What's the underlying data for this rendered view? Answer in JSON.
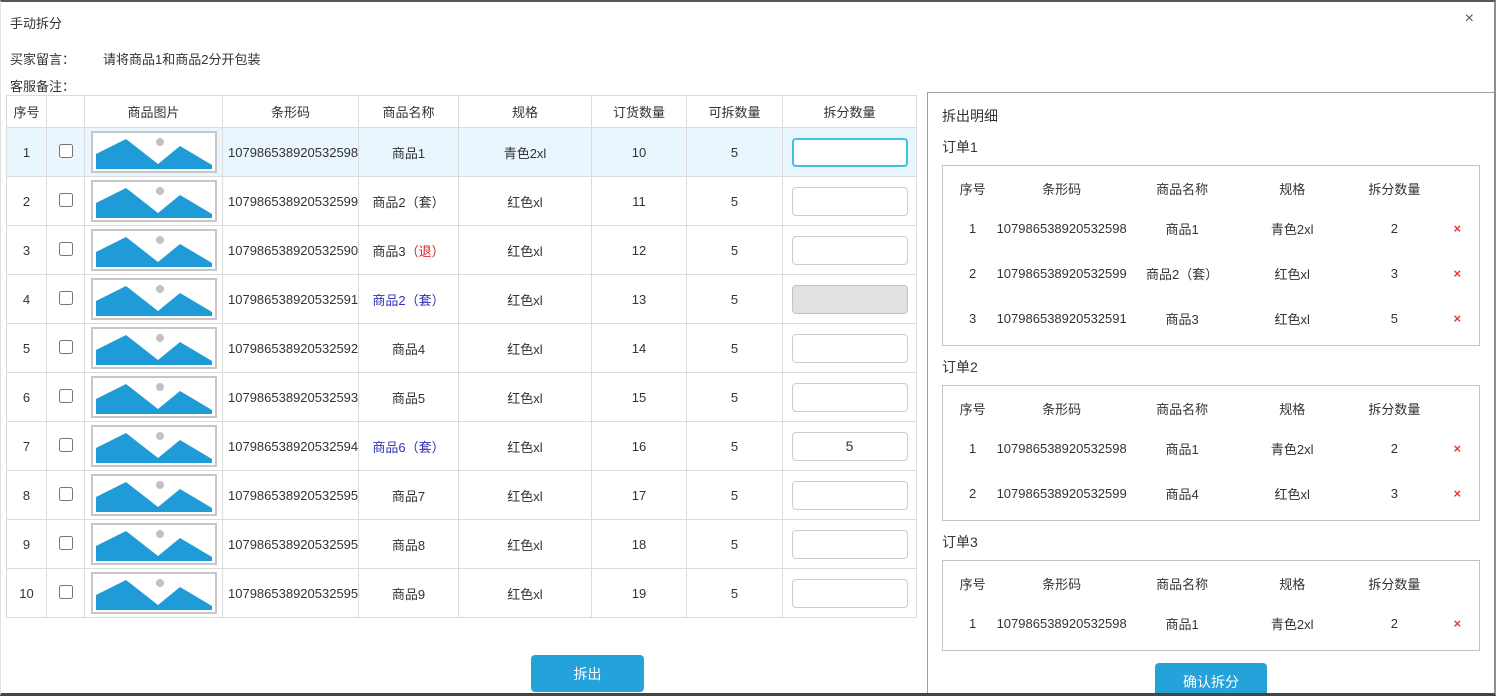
{
  "dialog": {
    "title": "手动拆分",
    "close_icon": "×"
  },
  "buyer_message": {
    "label": "买家留言：",
    "value": "请将商品1和商品2分开包装"
  },
  "service_note": {
    "label": "客服备注："
  },
  "colors": {
    "accent_blue": "#24a3da",
    "row_highlight": "#e9f6fd",
    "focus_border": "#3fc0e4",
    "link_navy": "#3232b4",
    "tag_red": "#e02020",
    "delete_red": "#e23b3b",
    "mountain_blue": "#1f9cd8"
  },
  "left_table": {
    "headers": [
      "序号",
      "",
      "商品图片",
      "条形码",
      "商品名称",
      "规格",
      "订货数量",
      "可拆数量",
      "拆分数量"
    ],
    "rows": [
      {
        "no": "1",
        "barcode": "107986538920532598",
        "name": [
          {
            "t": "商品1",
            "c": ""
          }
        ],
        "spec": "青色2xl",
        "order_qty": "10",
        "splittable_qty": "5",
        "input": {
          "value": "",
          "state": "focused"
        },
        "highlight": true
      },
      {
        "no": "2",
        "barcode": "107986538920532599",
        "name": [
          {
            "t": "商品2（套）",
            "c": ""
          }
        ],
        "spec": "红色xl",
        "order_qty": "11",
        "splittable_qty": "5",
        "input": {
          "value": "",
          "state": "normal"
        },
        "highlight": false
      },
      {
        "no": "3",
        "barcode": "107986538920532590",
        "name": [
          {
            "t": "商品3",
            "c": ""
          },
          {
            "t": "（退）",
            "c": "#e02020"
          }
        ],
        "spec": "红色xl",
        "order_qty": "12",
        "splittable_qty": "5",
        "input": {
          "value": "",
          "state": "normal"
        },
        "highlight": false
      },
      {
        "no": "4",
        "barcode": "107986538920532591",
        "name": [
          {
            "t": "商品2（套）",
            "c": "#3232b4"
          }
        ],
        "spec": "红色xl",
        "order_qty": "13",
        "splittable_qty": "5",
        "input": {
          "value": "",
          "state": "disabled"
        },
        "highlight": false
      },
      {
        "no": "5",
        "barcode": "107986538920532592",
        "name": [
          {
            "t": "商品4",
            "c": ""
          }
        ],
        "spec": "红色xl",
        "order_qty": "14",
        "splittable_qty": "5",
        "input": {
          "value": "",
          "state": "normal"
        },
        "highlight": false
      },
      {
        "no": "6",
        "barcode": "107986538920532593",
        "name": [
          {
            "t": "商品5",
            "c": ""
          }
        ],
        "spec": "红色xl",
        "order_qty": "15",
        "splittable_qty": "5",
        "input": {
          "value": "",
          "state": "normal"
        },
        "highlight": false
      },
      {
        "no": "7",
        "barcode": "107986538920532594",
        "name": [
          {
            "t": "商品6（套）",
            "c": "#3232b4"
          }
        ],
        "spec": "红色xl",
        "order_qty": "16",
        "splittable_qty": "5",
        "input": {
          "value": "5",
          "state": "normal"
        },
        "highlight": false
      },
      {
        "no": "8",
        "barcode": "107986538920532595",
        "name": [
          {
            "t": "商品7",
            "c": ""
          }
        ],
        "spec": "红色xl",
        "order_qty": "17",
        "splittable_qty": "5",
        "input": {
          "value": "",
          "state": "normal"
        },
        "highlight": false
      },
      {
        "no": "9",
        "barcode": "107986538920532595",
        "name": [
          {
            "t": "商品8",
            "c": ""
          }
        ],
        "spec": "红色xl",
        "order_qty": "18",
        "splittable_qty": "5",
        "input": {
          "value": "",
          "state": "normal"
        },
        "highlight": false
      },
      {
        "no": "10",
        "barcode": "107986538920532595",
        "name": [
          {
            "t": "商品9",
            "c": ""
          }
        ],
        "spec": "红色xl",
        "order_qty": "19",
        "splittable_qty": "5",
        "input": {
          "value": "",
          "state": "normal"
        },
        "highlight": false
      }
    ]
  },
  "actions": {
    "split_label": "拆出",
    "confirm_label": "确认拆分"
  },
  "detail_panel": {
    "title": "拆出明细",
    "table_headers": [
      "序号",
      "条形码",
      "商品名称",
      "规格",
      "拆分数量"
    ],
    "delete_icon": "×",
    "orders": [
      {
        "label": "订单1",
        "rows": [
          {
            "no": "1",
            "barcode": "107986538920532598",
            "name": "商品1",
            "spec": "青色2xl",
            "qty": "2"
          },
          {
            "no": "2",
            "barcode": "107986538920532599",
            "name": "商品2（套）",
            "spec": "红色xl",
            "qty": "3"
          },
          {
            "no": "3",
            "barcode": "107986538920532591",
            "name": "商品3",
            "spec": "红色xl",
            "qty": "5"
          }
        ]
      },
      {
        "label": "订单2",
        "rows": [
          {
            "no": "1",
            "barcode": "107986538920532598",
            "name": "商品1",
            "spec": "青色2xl",
            "qty": "2"
          },
          {
            "no": "2",
            "barcode": "107986538920532599",
            "name": "商品4",
            "spec": "红色xl",
            "qty": "3"
          }
        ]
      },
      {
        "label": "订单3",
        "rows": [
          {
            "no": "1",
            "barcode": "107986538920532598",
            "name": "商品1",
            "spec": "青色2xl",
            "qty": "2"
          }
        ]
      }
    ]
  }
}
